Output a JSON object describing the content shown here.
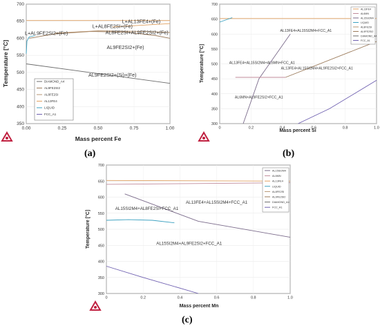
{
  "figure": {
    "captions": [
      "(a)",
      "(b)",
      "(c)"
    ]
  },
  "colors": {
    "DIAMOND_A4": "#6b6b6b",
    "AL9FE2SI2": "#9b7a5a",
    "AL8FE2SI": "#b79572",
    "AL13FE4": "#e0a060",
    "LIQUID": "#3aa0c0",
    "FCC_A1": "#6e5fb0",
    "AL15SI2M4": "#7a6a8a",
    "AL6MN": "#c08a9a",
    "logo": "#c02040"
  },
  "chart_data": [
    {
      "type": "line",
      "panel": "(a)",
      "xlabel": "Mass percent Fe",
      "ylabel": "Temperature [°C]",
      "xlim": [
        0,
        1.0
      ],
      "ylim": [
        350,
        700
      ],
      "xticks": [
        "0.00",
        "0.25",
        "0.50",
        "0.75",
        "1.00"
      ],
      "yticks": [
        "350",
        "400",
        "450",
        "500",
        "550",
        "600",
        "650",
        "700"
      ],
      "legend": {
        "placement": "bottom-left",
        "entries": [
          "DIAMOND_A4",
          "AL9FE2SI2",
          "AL8FE2SI",
          "AL13FE4",
          "LIQUID",
          "FCC_A1"
        ]
      },
      "annotations": [
        {
          "text": "L+AL13FE4+(Fe)",
          "x": 0.8,
          "y": 644
        },
        {
          "text": "L+AL8FE2SI+(Fe)",
          "x": 0.6,
          "y": 630
        },
        {
          "text": "L+AL9FE2SI2+(Fe)",
          "x": 0.14,
          "y": 610
        },
        {
          "text": "AL8FE2SI+AL9FE2SI2+(Fe)",
          "x": 0.77,
          "y": 612
        },
        {
          "text": "AL9FE2SI2+(Fe)",
          "x": 0.69,
          "y": 569
        },
        {
          "text": "AL9FE2SI2+(Si)+(Fe)",
          "x": 0.6,
          "y": 488
        }
      ],
      "series": [
        {
          "name": "DIAMOND_A4",
          "x": [
            0,
            1.0
          ],
          "y": [
            525,
            468
          ]
        },
        {
          "name": "AL9FE2SI2",
          "x": [
            0.02,
            0.2,
            0.45,
            0.7,
            0.9,
            1.0
          ],
          "y": [
            600,
            613,
            620,
            618,
            608,
            600
          ]
        },
        {
          "name": "AL8FE2SI",
          "x": [
            0.2,
            0.5,
            0.8,
            1.0
          ],
          "y": [
            615,
            622,
            620,
            617
          ]
        },
        {
          "name": "AL13FE4",
          "x": [
            0,
            1.0
          ],
          "y": [
            652,
            652
          ]
        },
        {
          "name": "AL13FE4",
          "x": [
            0.6,
            0.8,
            1.0
          ],
          "y": [
            633,
            638,
            643
          ]
        },
        {
          "name": "LIQUID",
          "x": [
            0,
            0.005,
            0.02,
            0.06
          ],
          "y": [
            555,
            592,
            604,
            608
          ]
        }
      ]
    },
    {
      "type": "line",
      "panel": "(b)",
      "xlabel": "Mass percent Si",
      "ylabel": "Temperature [°C]",
      "xlim": [
        0,
        1.0
      ],
      "ylim": [
        300,
        700
      ],
      "xticks": [
        "0",
        "0.2",
        "0.4",
        "0.6",
        "0.8",
        "1.0"
      ],
      "yticks": [
        "300",
        "350",
        "400",
        "450",
        "500",
        "550",
        "600",
        "650",
        "700"
      ],
      "legend": {
        "placement": "top-right",
        "entries": [
          "AL13FE4",
          "AL6MN",
          "AL15SI2M4",
          "LIQUID",
          "AL8FE2SI",
          "AL9FE2SI2",
          "DIAMOND_A4",
          "FCC_A1"
        ]
      },
      "annotations": [
        {
          "text": "AL13FE4+AL15SI2M4+FCC_A1",
          "x": 0.55,
          "y": 608
        },
        {
          "text": "AL13FE4+AL15SI2M4+AL6MN+FCC_A1",
          "x": 0.27,
          "y": 500
        },
        {
          "text": "AL13FE4+AL15SI2M4+AL9FE2SI2+FCC_A1",
          "x": 0.62,
          "y": 482
        },
        {
          "text": "AL6MN+AL9FE2SI2+FCC_A1",
          "x": 0.25,
          "y": 384
        }
      ],
      "series": [
        {
          "name": "AL13FE4",
          "x": [
            0,
            1.0
          ],
          "y": [
            652,
            652
          ]
        },
        {
          "name": "LIQUID",
          "x": [
            0,
            0.08
          ],
          "y": [
            640,
            655
          ]
        },
        {
          "name": "AL15SI2M4",
          "x": [
            0.15,
            0.25,
            0.45
          ],
          "y": [
            300,
            450,
            600
          ]
        },
        {
          "name": "AL6MN",
          "x": [
            0.1,
            0.42
          ],
          "y": [
            455,
            455
          ]
        },
        {
          "name": "AL9FE2SI2",
          "x": [
            0.42,
            1.0
          ],
          "y": [
            455,
            575
          ]
        },
        {
          "name": "FCC_A1",
          "x": [
            0.5,
            0.7,
            1.0
          ],
          "y": [
            300,
            350,
            445
          ]
        }
      ]
    },
    {
      "type": "line",
      "panel": "(c)",
      "xlabel": "Mass percent Mn",
      "ylabel": "Temperature [°C]",
      "xlim": [
        0,
        1.0
      ],
      "ylim": [
        300,
        700
      ],
      "xticks": [
        "0",
        "0.2",
        "0.4",
        "0.6",
        "0.8",
        "1.0"
      ],
      "yticks": [
        "300",
        "350",
        "400",
        "450",
        "500",
        "550",
        "600",
        "650",
        "700"
      ],
      "legend": {
        "placement": "top-right",
        "entries": [
          "AL15SI2M4",
          "AL6MN",
          "AL13FE4",
          "LIQUID",
          "AL8FE2SI",
          "AL9FE2SI2",
          "DIAMOND_A4",
          "FCC_A1"
        ]
      },
      "annotations": [
        {
          "text": "AL15SI2M4+AL8FE2SI+FCC_A1",
          "x": 0.22,
          "y": 560
        },
        {
          "text": "AL13FE4+AL15SI2M4+FCC_A1",
          "x": 0.6,
          "y": 580
        },
        {
          "text": "AL15SI2M4+AL9FE2SI2+FCC_A1",
          "x": 0.45,
          "y": 452
        }
      ],
      "series": [
        {
          "name": "AL13FE4",
          "x": [
            0,
            1.0
          ],
          "y": [
            652,
            650
          ]
        },
        {
          "name": "AL6MN",
          "x": [
            0,
            1.0
          ],
          "y": [
            640,
            645
          ]
        },
        {
          "name": "LIQUID",
          "x": [
            0.0,
            0.12,
            0.25,
            0.37
          ],
          "y": [
            528,
            530,
            528,
            520
          ]
        },
        {
          "name": "AL15SI2M4",
          "x": [
            0.1,
            0.5,
            1.0
          ],
          "y": [
            610,
            525,
            475
          ]
        },
        {
          "name": "FCC_A1",
          "x": [
            0.0,
            0.2,
            0.5
          ],
          "y": [
            385,
            350,
            300
          ]
        }
      ]
    }
  ]
}
